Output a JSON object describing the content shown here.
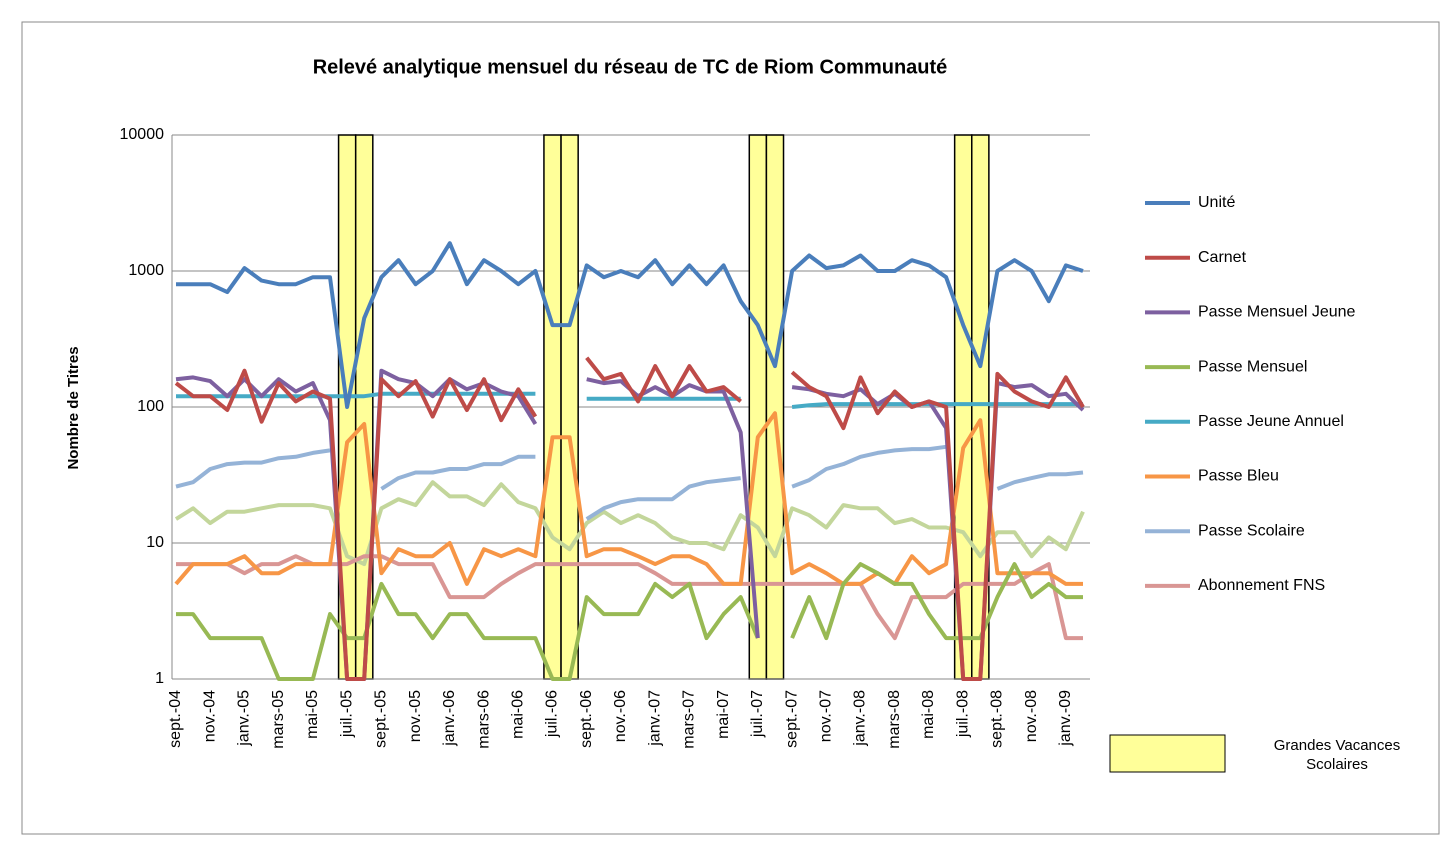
{
  "chart_data": {
    "type": "line",
    "title": "Relevé analytique mensuel du réseau de TC de Riom Communauté",
    "y_label": "Nombre de Titres",
    "log_scale": true,
    "grid": true,
    "legend": "right",
    "ylim": [
      1,
      10000
    ],
    "yticks": [
      1,
      10,
      100,
      1000,
      10000
    ],
    "categories": [
      "sept.-04",
      null,
      "nov.-04",
      null,
      "janv.-05",
      null,
      "mars-05",
      null,
      "mai-05",
      null,
      "juil.-05",
      null,
      "sept.-05",
      null,
      "nov.-05",
      null,
      "janv.-06",
      null,
      "mars-06",
      null,
      "mai-06",
      null,
      "juil.-06",
      null,
      "sept.-06",
      null,
      "nov.-06",
      null,
      "janv.-07",
      null,
      "mars-07",
      null,
      "mai-07",
      null,
      "juil.-07",
      null,
      "sept.-07",
      null,
      "nov.-07",
      null,
      "janv.-08",
      null,
      "mars-08",
      null,
      "mai-08",
      null,
      "juil.-08",
      null,
      "sept.-08",
      null,
      "nov.-08",
      null,
      "janv.-09",
      null
    ],
    "highlight": {
      "name": "Grandes Vacances Scolaires",
      "color": "#ffff99",
      "values": [
        null,
        null,
        null,
        null,
        null,
        null,
        null,
        null,
        null,
        null,
        10000,
        10000,
        null,
        null,
        null,
        null,
        null,
        null,
        null,
        null,
        null,
        null,
        10000,
        10000,
        null,
        null,
        null,
        null,
        null,
        null,
        null,
        null,
        null,
        null,
        10000,
        10000,
        null,
        null,
        null,
        null,
        null,
        null,
        null,
        null,
        null,
        null,
        10000,
        10000,
        null,
        null,
        null,
        null,
        null,
        null
      ]
    },
    "series": [
      {
        "color": "#c3d69b",
        "values": [
          15,
          18,
          14,
          17,
          17,
          18,
          19,
          19,
          19,
          18,
          8,
          7,
          18,
          21,
          19,
          28,
          22,
          22,
          19,
          27,
          20,
          18,
          11,
          9,
          14,
          17,
          14,
          16,
          14,
          11,
          10,
          10,
          9,
          16,
          13,
          8,
          18,
          16,
          13,
          19,
          18,
          18,
          14,
          15,
          13,
          13,
          12,
          8,
          12,
          12,
          8,
          11,
          9,
          17
        ]
      },
      {
        "name": "Abonnement FNS",
        "color": "#d99694",
        "values": [
          7,
          7,
          7,
          7,
          6,
          7,
          7,
          8,
          7,
          7,
          7,
          8,
          8,
          7,
          7,
          7,
          4,
          4,
          4,
          5,
          6,
          7,
          7,
          7,
          7,
          7,
          7,
          7,
          6,
          5,
          5,
          5,
          5,
          5,
          5,
          5,
          5,
          5,
          5,
          5,
          5,
          3,
          2,
          4,
          4,
          4,
          5,
          5,
          5,
          5,
          6,
          7,
          2,
          2
        ]
      },
      {
        "name": "Passe Scolaire",
        "color": "#95b3d7",
        "values": [
          26,
          28,
          35,
          38,
          39,
          39,
          42,
          43,
          46,
          48,
          null,
          null,
          25,
          30,
          33,
          33,
          35,
          35,
          38,
          38,
          43,
          43,
          null,
          null,
          15,
          18,
          20,
          21,
          21,
          21,
          26,
          28,
          29,
          30,
          null,
          null,
          26,
          29,
          35,
          38,
          43,
          46,
          48,
          49,
          49,
          51,
          null,
          null,
          25,
          28,
          30,
          32,
          32,
          33
        ]
      },
      {
        "name": "Passe Bleu",
        "color": "#f79646",
        "values": [
          5,
          7,
          7,
          7,
          8,
          6,
          6,
          7,
          7,
          7,
          55,
          75,
          6,
          9,
          8,
          8,
          10,
          5,
          9,
          8,
          9,
          8,
          60,
          60,
          8,
          9,
          9,
          8,
          7,
          8,
          8,
          7,
          5,
          5,
          60,
          90,
          6,
          7,
          6,
          5,
          5,
          6,
          5,
          8,
          6,
          7,
          50,
          80,
          6,
          6,
          6,
          6,
          5,
          5
        ]
      },
      {
        "name": "Passe Jeune Annuel",
        "color": "#46aac5",
        "values": [
          120,
          120,
          120,
          120,
          120,
          120,
          120,
          120,
          120,
          120,
          120,
          120,
          125,
          125,
          125,
          125,
          125,
          125,
          125,
          125,
          125,
          125,
          null,
          null,
          115,
          115,
          115,
          115,
          115,
          115,
          115,
          115,
          115,
          115,
          null,
          null,
          100,
          103,
          105,
          105,
          105,
          105,
          105,
          105,
          105,
          105,
          105,
          105,
          105,
          105,
          105,
          105,
          105,
          105
        ]
      },
      {
        "name": "Passe Mensuel",
        "color": "#98b954",
        "values": [
          3,
          3,
          2,
          2,
          2,
          2,
          1,
          1,
          1,
          3,
          2,
          2,
          5,
          3,
          3,
          2,
          3,
          3,
          2,
          2,
          2,
          2,
          1,
          1,
          4,
          3,
          3,
          3,
          5,
          4,
          5,
          2,
          3,
          4,
          2,
          null,
          2,
          4,
          2,
          5,
          7,
          6,
          5,
          5,
          3,
          2,
          2,
          2,
          4,
          7,
          4,
          5,
          4,
          4
        ]
      },
      {
        "name": "Passe Mensuel Jeune",
        "color": "#7d60a0",
        "values": [
          160,
          165,
          155,
          120,
          160,
          120,
          160,
          130,
          150,
          80,
          1,
          1,
          185,
          160,
          150,
          120,
          160,
          135,
          150,
          130,
          120,
          75,
          null,
          null,
          160,
          150,
          155,
          120,
          140,
          120,
          145,
          130,
          130,
          65,
          2,
          null,
          140,
          135,
          125,
          120,
          135,
          105,
          125,
          100,
          110,
          70,
          1,
          1,
          150,
          140,
          145,
          120,
          125,
          95
        ]
      },
      {
        "name": "Carnet",
        "color": "#be4b48",
        "values": [
          150,
          120,
          120,
          95,
          185,
          78,
          150,
          110,
          130,
          115,
          1,
          1,
          160,
          120,
          155,
          85,
          160,
          95,
          160,
          80,
          135,
          85,
          null,
          null,
          230,
          160,
          175,
          110,
          200,
          120,
          200,
          130,
          140,
          110,
          null,
          null,
          180,
          140,
          120,
          70,
          165,
          90,
          130,
          100,
          110,
          100,
          1,
          1,
          175,
          130,
          110,
          100,
          165,
          100
        ]
      },
      {
        "name": "Unité",
        "color": "#4a7ebb",
        "values": [
          800,
          800,
          800,
          700,
          1050,
          850,
          800,
          800,
          900,
          900,
          100,
          450,
          900,
          1200,
          800,
          1000,
          1600,
          800,
          1200,
          1000,
          800,
          1000,
          400,
          400,
          1100,
          900,
          1000,
          900,
          1200,
          800,
          1100,
          800,
          1100,
          600,
          400,
          200,
          1000,
          1300,
          1050,
          1100,
          1300,
          1000,
          1000,
          1200,
          1100,
          900,
          400,
          200,
          1000,
          1200,
          1000,
          600,
          1100,
          1000
        ]
      }
    ]
  }
}
